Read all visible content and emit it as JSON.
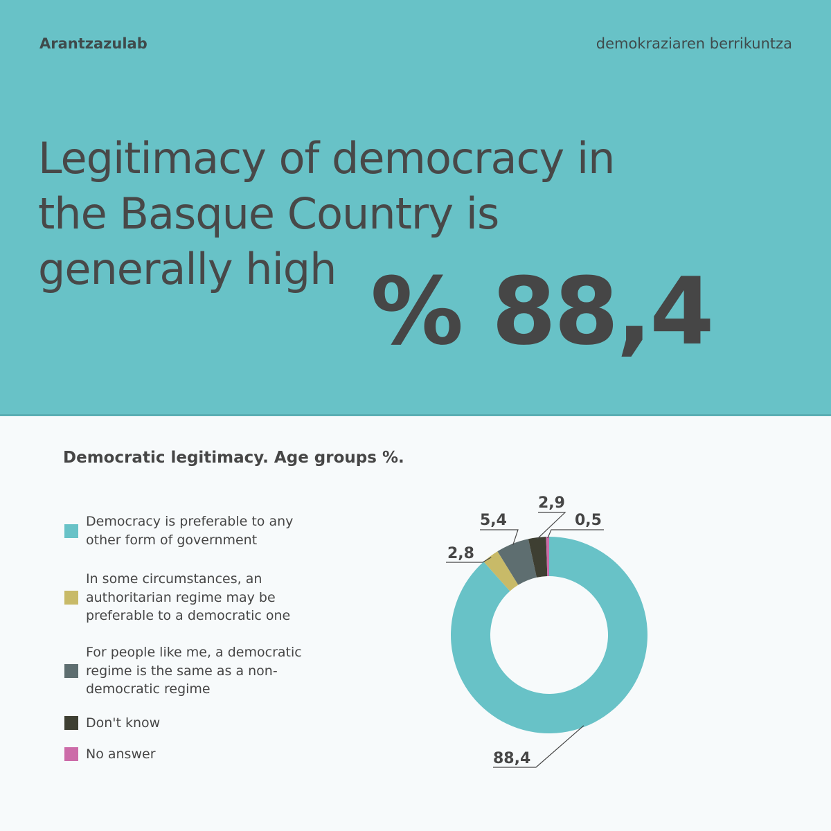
{
  "header": {
    "brand": "Arantzazulab",
    "tagline": "demokraziaren berrikuntza"
  },
  "hero": {
    "headline": "Legitimacy of democracy in the Basque Country is generally high",
    "stat": "% 88,4"
  },
  "colors": {
    "hero_bg": "#68c2c7",
    "page_bg": "#f7fafb",
    "text": "#464646"
  },
  "chart_data": {
    "type": "pie",
    "variant": "donut",
    "title": "Democratic legitimacy. Age groups %.",
    "legend_position": "left",
    "series": [
      {
        "name": "Democracy is preferable to any other form of government",
        "value": 88.4,
        "label": "88,4",
        "color": "#68c2c7"
      },
      {
        "name": "In some circumstances, an authoritarian regime may be preferable to a democratic one",
        "value": 2.8,
        "label": "2,8",
        "color": "#c8ba68"
      },
      {
        "name": "For people like me, a democratic regime is the same as a non-democratic regime",
        "value": 5.4,
        "label": "5,4",
        "color": "#5e6e70"
      },
      {
        "name": "Don't know",
        "value": 2.9,
        "label": "2,9",
        "color": "#3e3f32"
      },
      {
        "name": "No answer",
        "value": 0.5,
        "label": "0,5",
        "color": "#cc6ba8"
      }
    ]
  }
}
